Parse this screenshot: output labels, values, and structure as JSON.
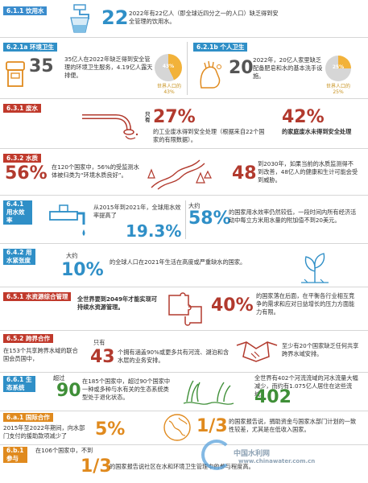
{
  "s611": {
    "tag": "6.1.1 饮用水",
    "big": "22",
    "text": "2022年有22亿人（即全球近四分之一的人口）缺乏得到安全管理的饮用水。"
  },
  "s612a": {
    "tag": "6.2.1a 环境卫生",
    "big": "35",
    "text": "35亿人在2022年缺乏得到安全管理的环境卫生服务，4.19亿人露天排便。",
    "pie_pct": "43%",
    "pie_caption": "世界人口的 43%",
    "pie_value": 0.43
  },
  "s612b": {
    "tag": "6.2.1b 个人卫生",
    "big": "20",
    "text": "2022年，20亿人家里缺乏配备肥皂和水的基本洗手设施。",
    "pie_pct": "25%",
    "pie_caption": "世界人口的 25%",
    "pie_value": 0.25
  },
  "s631": {
    "tag": "6.3.1 废水",
    "prefix": "只有",
    "big1": "27%",
    "text1": "的工业废水得到安全处理（根据来自22个国家的有限数据）。",
    "big2": "42%",
    "text2": "的家庭废水未得到安全处理"
  },
  "s632": {
    "tag": "6.3.2 水质",
    "big1": "56%",
    "text1": "在120个国家中，56%的受监测水体被归类为“环境水质良好”。",
    "big2": "48",
    "text2": "到2030年，如果当前的水质监测得不到改善，48亿人的健康和生计可能会受到威胁。"
  },
  "s641": {
    "tag": "6.4.1 用水效率",
    "text1": "从2015年到2021年，全球用水效率提高了",
    "big1": "19.3%",
    "prefix2": "大约",
    "big2": "58%",
    "text2": "的国家用水效率仍然较低，一段时间内所有经济活动中每立方米用水量的附加值不到20美元。"
  },
  "s642": {
    "tag": "6.4.2 用水紧张度",
    "prefix": "大约",
    "big": "10%",
    "text": "的全球人口在2021年生活在高度或严重缺水的国家。"
  },
  "s651": {
    "tag": "6.5.1 水资源综合管理",
    "text1": "全世界要到2049年才能实现可持续水资源管理。",
    "big": "40%",
    "text2": "的国家落在后面，在平衡各行业相互竞争的需求和应对日益增长的压力方面能力有限。"
  },
  "s652": {
    "tag": "6.5.2 跨界合作",
    "text1": "在153个共享跨界水域的联合国会员国中，",
    "prefix": "只有",
    "big": "43",
    "text2": "个拥有涵盖90%或更多共有河流、湖泊和含水层的业务安排。",
    "text3": "至少有20个国家缺乏任何共享跨界水域安排。"
  },
  "s661": {
    "tag": "6.6.1 生态系统",
    "prefix": "超过",
    "big1": "90",
    "text1": "在185个国家中，超过90个国家中一种或多种与水有关的生态系统类型处于退化状态。",
    "text2": "全世界有402个河流流域的河水流量大幅减少，而约有1.075亿人居住在这些流域。",
    "big2": "402"
  },
  "s6a1": {
    "tag": "6.a.1 国际合作",
    "text1": "2015年至2022年期间，向水部门支付的援助款项减少了",
    "big1": "5%",
    "big2": "1/3",
    "text2": "的国家报告说，捐助资金与国家水部门计划的一致性较差，尤其是在低收入国家。"
  },
  "s6b1": {
    "tag": "6.b.1 参与",
    "text1": "在106个国家中，不到",
    "big": "1/3",
    "text2": "的国家报告说社区在水和环境卫生管理中的参与程度高。"
  },
  "watermark": {
    "line1": "中国水利网",
    "line2": "www.chinawater.com.cn"
  }
}
